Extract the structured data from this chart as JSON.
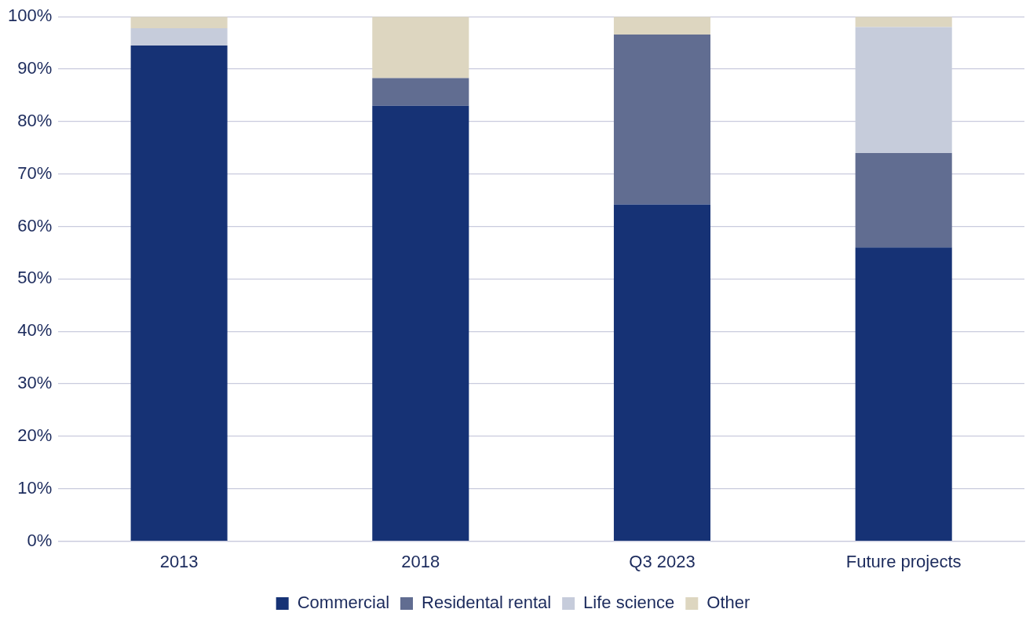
{
  "chart_data": {
    "type": "bar",
    "stacked": true,
    "categories": [
      "2013",
      "2018",
      "Q3 2023",
      "Future projects"
    ],
    "series": [
      {
        "name": "Commercial",
        "color": "#163275",
        "values": [
          94.5,
          83,
          64.2,
          56
        ]
      },
      {
        "name": "Residental rental",
        "color": "#616d91",
        "values": [
          0,
          5.3,
          32.4,
          18
        ]
      },
      {
        "name": "Life science",
        "color": "#c6ccdb",
        "values": [
          3.3,
          0,
          0,
          24
        ]
      },
      {
        "name": "Other",
        "color": "#ddd6c0",
        "values": [
          2.2,
          11.7,
          3.4,
          2
        ]
      }
    ],
    "ylim": [
      0,
      100
    ],
    "yticks": [
      {
        "value": 0,
        "label": "0%"
      },
      {
        "value": 10,
        "label": "10%"
      },
      {
        "value": 20,
        "label": "20%"
      },
      {
        "value": 30,
        "label": "30%"
      },
      {
        "value": 40,
        "label": "40%"
      },
      {
        "value": 50,
        "label": "50%"
      },
      {
        "value": 60,
        "label": "60%"
      },
      {
        "value": 70,
        "label": "70%"
      },
      {
        "value": 80,
        "label": "80%"
      },
      {
        "value": 90,
        "label": "90%"
      },
      {
        "value": 100,
        "label": "100%"
      }
    ],
    "grid": "y",
    "legend": "bottom"
  }
}
